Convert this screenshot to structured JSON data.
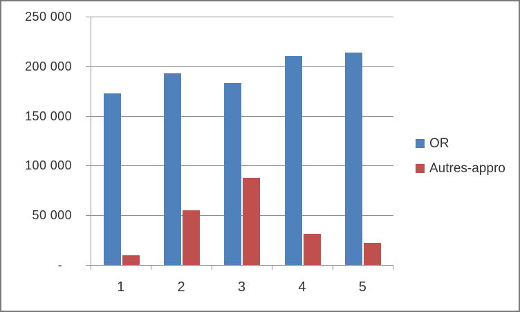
{
  "window": {
    "background_color": "#FFFFFF",
    "border_color": "#7A7A7A"
  },
  "chart_data": {
    "type": "bar",
    "title": "",
    "xlabel": "",
    "ylabel": "",
    "categories": [
      "1",
      "2",
      "3",
      "4",
      "5"
    ],
    "series": [
      {
        "name": "OR",
        "color": "#4F81BD",
        "values": [
          173000,
          193000,
          183000,
          210000,
          214000
        ]
      },
      {
        "name": "Autres-appro",
        "color": "#C0504D",
        "values": [
          10000,
          55000,
          88000,
          31000,
          22500
        ]
      }
    ],
    "ylim": [
      0,
      250000
    ],
    "ytick_interval": 50000,
    "ytick_labels_top_to_bottom": [
      "250 000",
      "200 000",
      "150 000",
      "100 000",
      "50 000",
      "-"
    ],
    "grid": true,
    "legend_position": "right",
    "gridline_color": "#8F8F8F",
    "axis_color": "#8F8F8F",
    "text_color": "#333333"
  }
}
